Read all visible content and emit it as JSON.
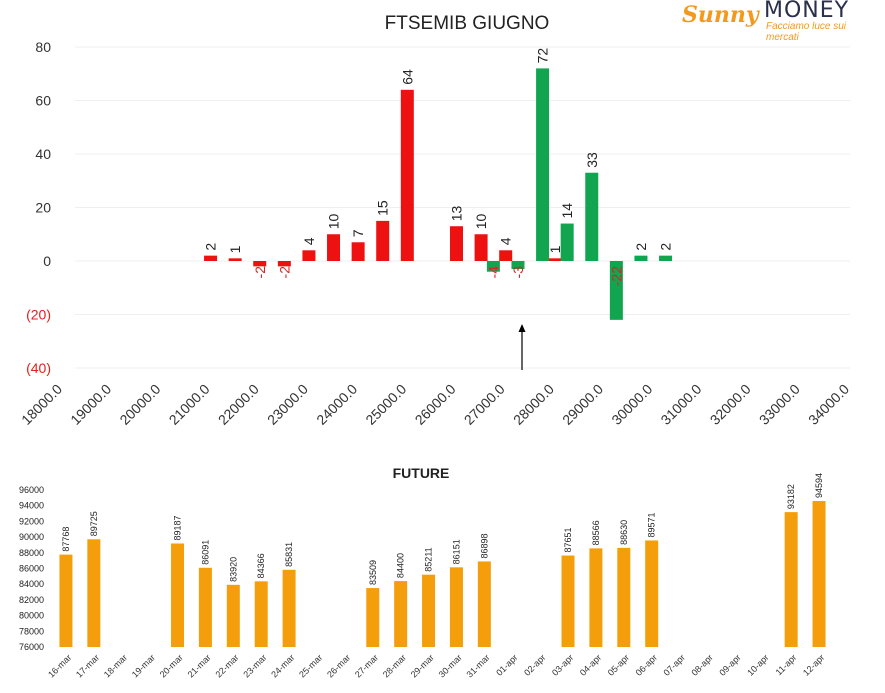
{
  "brand": {
    "name_part1": "Sunny",
    "name_part2": "MONEY",
    "tagline": "Facciamo luce sui mercati"
  },
  "chart_data": [
    {
      "type": "bar",
      "title": "FTSEMIB GIUGNO",
      "y_ticks": [
        "80",
        "60",
        "40",
        "20",
        "0",
        "(20)",
        "(40)"
      ],
      "ylim": [
        -40,
        80
      ],
      "x_ticks": [
        "18000.0",
        "19000.0",
        "20000.0",
        "21000.0",
        "22000.0",
        "23000.0",
        "24000.0",
        "25000.0",
        "26000.0",
        "27000.0",
        "28000.0",
        "29000.0",
        "30000.0",
        "31000.0",
        "32000.0",
        "33000.0",
        "34000.0"
      ],
      "xlim": [
        18000,
        34000
      ],
      "grid": true,
      "annotation": "arrow pointing up at 27000 (current level)",
      "series": [
        {
          "color": "#ee1111",
          "points": [
            {
              "x": 21000,
              "y": 2
            },
            {
              "x": 21500,
              "y": 1
            },
            {
              "x": 22000,
              "y": -2
            },
            {
              "x": 22500,
              "y": -2
            },
            {
              "x": 23000,
              "y": 4
            },
            {
              "x": 23500,
              "y": 10
            },
            {
              "x": 24000,
              "y": 7
            },
            {
              "x": 24500,
              "y": 15
            },
            {
              "x": 25000,
              "y": 64
            },
            {
              "x": 26000,
              "y": 13
            },
            {
              "x": 26500,
              "y": 10
            },
            {
              "x": 27000,
              "y": 4
            },
            {
              "x": 28000,
              "y": 1
            }
          ]
        },
        {
          "color": "#11a550",
          "points": [
            {
              "x": 26750,
              "y": -4
            },
            {
              "x": 27250,
              "y": -3
            },
            {
              "x": 27750,
              "y": 72
            },
            {
              "x": 28250,
              "y": 14
            },
            {
              "x": 28750,
              "y": 33
            },
            {
              "x": 29250,
              "y": -22
            },
            {
              "x": 29750,
              "y": 2
            },
            {
              "x": 30250,
              "y": 2
            }
          ]
        }
      ]
    },
    {
      "type": "bar",
      "title": "FUTURE",
      "color": "#f59e0b",
      "ylim": [
        76000,
        96000
      ],
      "y_ticks": [
        "96000",
        "94000",
        "92000",
        "90000",
        "88000",
        "86000",
        "84000",
        "82000",
        "80000",
        "78000",
        "76000"
      ],
      "categories": [
        "16-mar",
        "17-mar",
        "18-mar",
        "19-mar",
        "20-mar",
        "21-mar",
        "22-mar",
        "23-mar",
        "24-mar",
        "25-mar",
        "26-mar",
        "27-mar",
        "28-mar",
        "29-mar",
        "30-mar",
        "31-mar",
        "01-apr",
        "02-apr",
        "03-apr",
        "04-apr",
        "05-apr",
        "06-apr",
        "07-apr",
        "08-apr",
        "09-apr",
        "10-apr",
        "11-apr",
        "12-apr"
      ],
      "values": [
        87768,
        89725,
        null,
        null,
        89187,
        86091,
        83920,
        84366,
        85831,
        null,
        null,
        83509,
        84400,
        85211,
        86151,
        86898,
        null,
        null,
        87651,
        88566,
        88630,
        89571,
        null,
        null,
        null,
        null,
        93182,
        94594
      ]
    }
  ]
}
